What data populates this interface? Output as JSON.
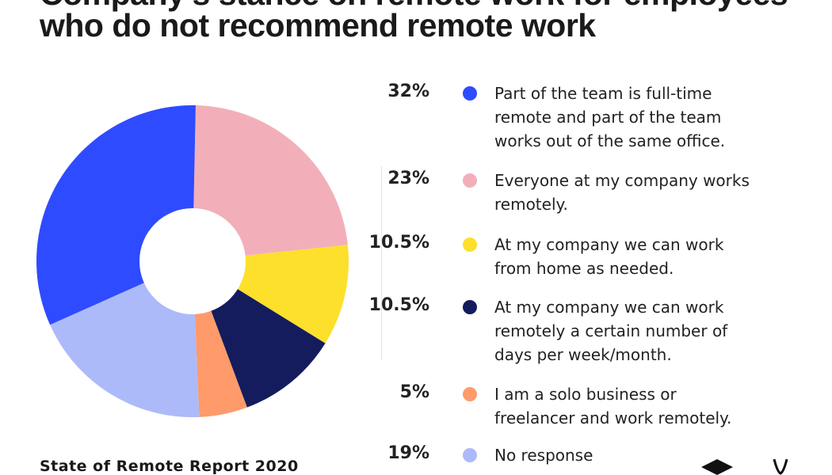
{
  "chart_data": {
    "type": "pie",
    "title": "Company's stance on remote work for employees who do not recommend remote work",
    "donut": true,
    "legend_position": "right",
    "slices": [
      {
        "label": "Everyone at my company works remotely.",
        "value": 23,
        "display": "23%",
        "color": "#f2afba"
      },
      {
        "label": "At my company we can work from home as needed.",
        "value": 10.5,
        "display": "10.5%",
        "color": "#fce02c"
      },
      {
        "label": "At my company we can work remotely a certain number of days per week/month.",
        "value": 10.5,
        "display": "10.5%",
        "color": "#141c5e"
      },
      {
        "label": "I am a solo business or freelancer and work remotely.",
        "value": 5,
        "display": "5%",
        "color": "#ff9a6a"
      },
      {
        "label": "No response",
        "value": 19,
        "display": "19%",
        "color": "#adbaf9"
      },
      {
        "label": "Part of the team is full-time remote and part of the team works out of the same office.",
        "value": 32,
        "display": "32%",
        "color": "#2f4bff"
      }
    ],
    "legend_order": [
      5,
      0,
      1,
      2,
      3,
      4
    ]
  },
  "footer": "State of Remote Report 2020"
}
